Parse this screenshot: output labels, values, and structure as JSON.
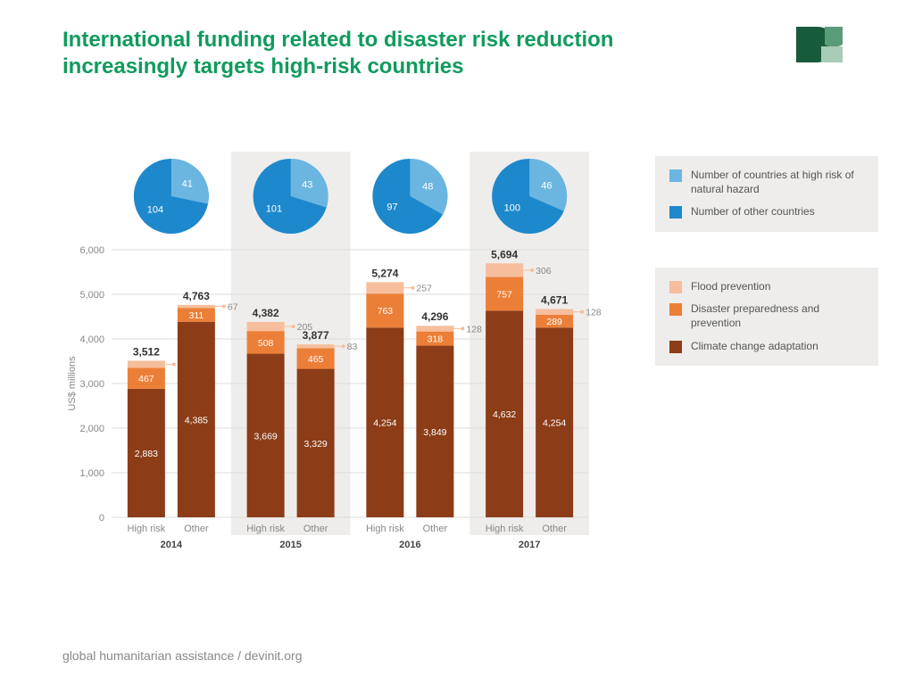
{
  "title": "International funding related to disaster risk reduction increasingly targets high-risk countries",
  "footer": "global humanitarian assistance / devinit.org",
  "logo_colors": {
    "dark": "#175a3c",
    "mid": "#5a9b79",
    "light": "#a9cbb8"
  },
  "legend_pie": {
    "items": [
      {
        "label": "Number of countries at high risk of natural hazard",
        "color": "#6bb6e0"
      },
      {
        "label": "Number of other countries",
        "color": "#1d88cc"
      }
    ]
  },
  "legend_bar": {
    "items": [
      {
        "label": "Flood prevention",
        "color": "#f6be9c"
      },
      {
        "label": "Disaster preparedness and prevention",
        "color": "#ec7f37"
      },
      {
        "label": "Climate change adaptation",
        "color": "#8c3c17"
      }
    ]
  },
  "chart": {
    "ylabel": "US$ millions",
    "ylim": [
      0,
      6000
    ],
    "ytick_step": 1000,
    "ytick_format": "thousands_comma",
    "categories": [
      "High risk",
      "Other"
    ],
    "colors": {
      "flood": "#f6be9c",
      "disaster": "#ec7f37",
      "climate": "#8c3c17",
      "pie_other": "#1d88cc",
      "pie_highrisk": "#6bb6e0",
      "grid": "#dddddd",
      "band": "#eeedeb",
      "leader": "#f6be9c"
    },
    "years": [
      {
        "year": "2014",
        "banded": false,
        "pie": {
          "other": 104,
          "highrisk": 41
        },
        "bars": [
          {
            "cat": "High risk",
            "climate": 2883,
            "disaster": 467,
            "flood": 162,
            "total": 3512
          },
          {
            "cat": "Other",
            "climate": 4385,
            "disaster": 311,
            "flood": 67,
            "total": 4763
          }
        ]
      },
      {
        "year": "2015",
        "banded": true,
        "pie": {
          "other": 101,
          "highrisk": 43
        },
        "bars": [
          {
            "cat": "High risk",
            "climate": 3669,
            "disaster": 508,
            "flood": 205,
            "total": 4382
          },
          {
            "cat": "Other",
            "climate": 3329,
            "disaster": 465,
            "flood": 83,
            "total": 3877
          }
        ]
      },
      {
        "year": "2016",
        "banded": false,
        "pie": {
          "other": 97,
          "highrisk": 48
        },
        "bars": [
          {
            "cat": "High risk",
            "climate": 4254,
            "disaster": 763,
            "flood": 257,
            "total": 5274
          },
          {
            "cat": "Other",
            "climate": 3849,
            "disaster": 318,
            "flood": 128,
            "total": 4296
          }
        ]
      },
      {
        "year": "2017",
        "banded": true,
        "pie": {
          "other": 100,
          "highrisk": 46
        },
        "bars": [
          {
            "cat": "High risk",
            "climate": 4632,
            "disaster": 757,
            "flood": 306,
            "total": 5694
          },
          {
            "cat": "Other",
            "climate": 4254,
            "disaster": 289,
            "flood": 128,
            "total": 4671
          }
        ]
      }
    ]
  }
}
